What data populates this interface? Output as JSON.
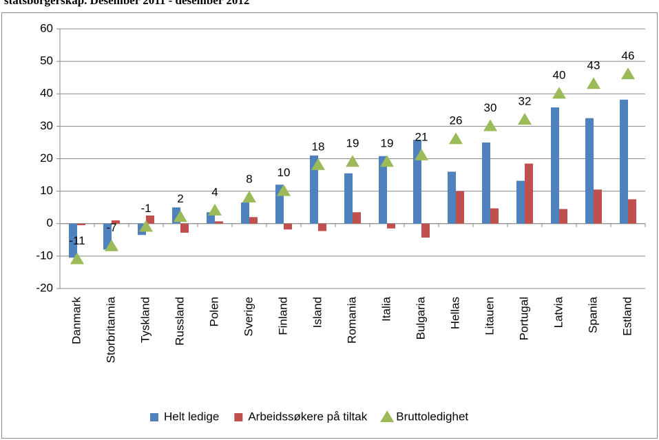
{
  "chart_data": {
    "type": "bar",
    "title": "statsborgerskap. Desember 2011 - desember 2012",
    "categories": [
      "Danmark",
      "Storbritannia",
      "Tyskland",
      "Russland",
      "Polen",
      "Sverige",
      "Finland",
      "Island",
      "Romania",
      "Italia",
      "Bulgaria",
      "Hellas",
      "Litauen",
      "Portugal",
      "Latvia",
      "Spania",
      "Estland"
    ],
    "series": [
      {
        "name": "Helt ledige",
        "color": "#4f81bd",
        "type": "bar",
        "values": [
          -10.5,
          -8,
          -3.5,
          5,
          3.5,
          6.5,
          12,
          21,
          15.5,
          20.8,
          25.8,
          16,
          25,
          13.2,
          35.8,
          32.5,
          38.2
        ]
      },
      {
        "name": "Arbeidssøkere på tiltak",
        "color": "#c0504d",
        "type": "bar",
        "values": [
          -0.5,
          1,
          2.5,
          -2.8,
          0.7,
          2,
          -1.8,
          -2.3,
          3.5,
          -1.5,
          -4.3,
          10,
          4.7,
          18.5,
          4.5,
          10.5,
          7.5
        ]
      },
      {
        "name": "Bruttoledighet",
        "color": "#9bbb59",
        "type": "scatter",
        "values": [
          -11,
          -7,
          -1,
          2,
          4,
          8,
          10,
          18,
          19,
          19,
          21,
          26,
          30,
          32,
          40,
          43,
          46
        ]
      }
    ],
    "ylim": [
      -20,
      60
    ],
    "yticks": [
      -20,
      -10,
      0,
      10,
      20,
      30,
      40,
      50,
      60
    ],
    "grid": true,
    "legend": "bottom"
  }
}
